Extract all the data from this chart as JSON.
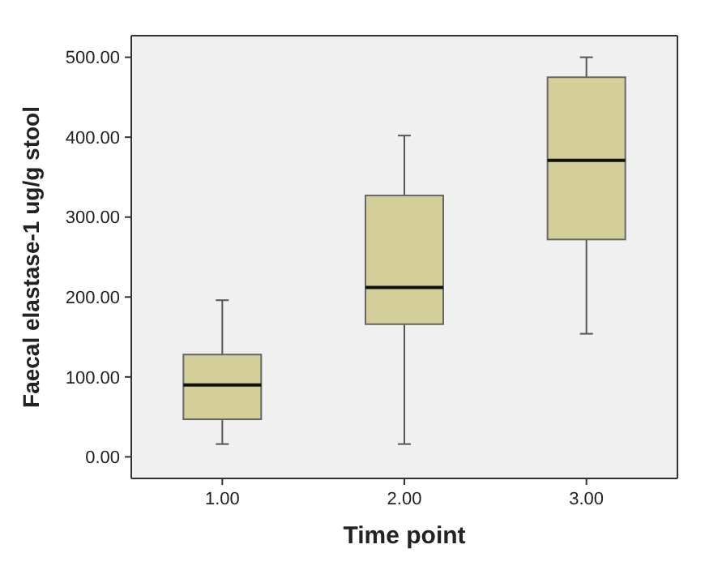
{
  "chart_data": {
    "type": "box",
    "xlabel": "Time point",
    "ylabel": "Faecal elastase-1 ug/g stool",
    "categories": [
      "1.00",
      "2.00",
      "3.00"
    ],
    "color": "#d4cf98",
    "boxes": [
      {
        "low": 16,
        "q1": 47,
        "median": 90,
        "q3": 128,
        "high": 196
      },
      {
        "low": 16,
        "q1": 166,
        "median": 212,
        "q3": 327,
        "high": 402
      },
      {
        "low": 154,
        "q1": 272,
        "median": 371,
        "q3": 475,
        "high": 500
      }
    ],
    "ylim": [
      -27,
      527
    ],
    "yticks": [
      {
        "value": 0,
        "label": "0.00"
      },
      {
        "value": 100,
        "label": "100.00"
      },
      {
        "value": 200,
        "label": "200.00"
      },
      {
        "value": 300,
        "label": "300.00"
      },
      {
        "value": 400,
        "label": "400.00"
      },
      {
        "value": 500,
        "label": "500.00"
      }
    ]
  }
}
